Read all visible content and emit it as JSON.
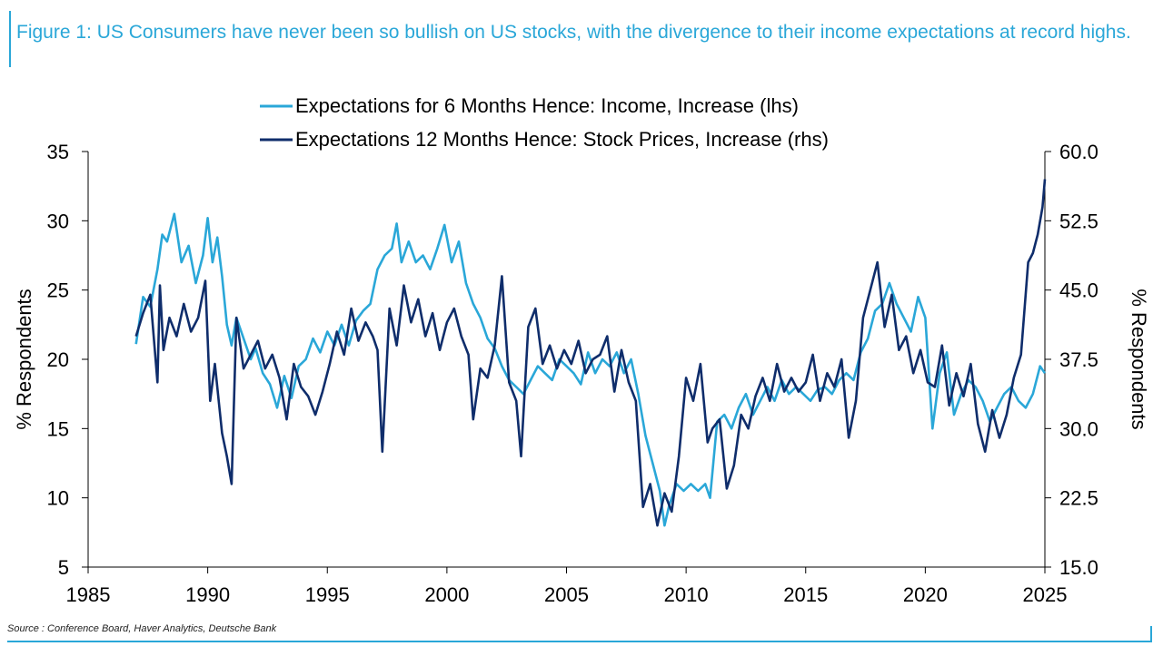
{
  "title": "Figure 1: US Consumers have never been so bullish on US stocks, with the divergence to their income expectations at record highs.",
  "source": "Source : Conference Board, Haver Analytics, Deutsche Bank",
  "colors": {
    "income": "#2aa7d8",
    "stocks": "#0f2d6b",
    "accent": "#2aa7d8",
    "axis": "#000000"
  },
  "chart_data": {
    "type": "line",
    "title": "",
    "xlabel": "",
    "ylabel_left": "% Respondents",
    "ylabel_right": "% Respondents",
    "xlim": [
      1985,
      2025
    ],
    "ylim_left": [
      5,
      35
    ],
    "ylim_right": [
      15.0,
      60.0
    ],
    "x_ticks": [
      "1985",
      "1990",
      "1995",
      "2000",
      "2005",
      "2010",
      "2015",
      "2020",
      "2025"
    ],
    "y_left_ticks": [
      "5",
      "10",
      "15",
      "20",
      "25",
      "30",
      "35"
    ],
    "y_right_ticks": [
      "15.0",
      "22.5",
      "30.0",
      "37.5",
      "45.0",
      "52.5",
      "60.0"
    ],
    "legend_position": "top-center",
    "series": [
      {
        "name": "Expectations for 6 Months Hence: Income, Increase (lhs)",
        "axis": "left",
        "x": [
          1987.0,
          1987.3,
          1987.6,
          1987.9,
          1988.1,
          1988.3,
          1988.6,
          1988.9,
          1989.2,
          1989.5,
          1989.8,
          1990.0,
          1990.2,
          1990.4,
          1990.6,
          1990.8,
          1991.0,
          1991.2,
          1991.5,
          1991.8,
          1992.0,
          1992.3,
          1992.6,
          1992.9,
          1993.2,
          1993.5,
          1993.8,
          1994.1,
          1994.4,
          1994.7,
          1995.0,
          1995.3,
          1995.6,
          1995.9,
          1996.2,
          1996.5,
          1996.8,
          1997.1,
          1997.4,
          1997.7,
          1997.9,
          1998.1,
          1998.4,
          1998.7,
          1999.0,
          1999.3,
          1999.6,
          1999.9,
          2000.2,
          2000.5,
          2000.8,
          2001.1,
          2001.4,
          2001.7,
          2002.0,
          2002.3,
          2002.6,
          2002.9,
          2003.2,
          2003.5,
          2003.8,
          2004.1,
          2004.4,
          2004.7,
          2005.0,
          2005.3,
          2005.6,
          2005.9,
          2006.2,
          2006.5,
          2006.8,
          2007.1,
          2007.4,
          2007.7,
          2008.0,
          2008.3,
          2008.6,
          2008.9,
          2009.1,
          2009.3,
          2009.6,
          2009.9,
          2010.2,
          2010.5,
          2010.8,
          2011.0,
          2011.3,
          2011.6,
          2011.9,
          2012.2,
          2012.5,
          2012.8,
          2013.1,
          2013.4,
          2013.7,
          2014.0,
          2014.3,
          2014.6,
          2014.9,
          2015.2,
          2015.5,
          2015.8,
          2016.1,
          2016.4,
          2016.7,
          2017.0,
          2017.3,
          2017.6,
          2017.9,
          2018.2,
          2018.5,
          2018.8,
          2019.1,
          2019.4,
          2019.7,
          2020.0,
          2020.3,
          2020.6,
          2020.9,
          2021.2,
          2021.5,
          2021.8,
          2022.1,
          2022.4,
          2022.7,
          2023.0,
          2023.3,
          2023.6,
          2023.9,
          2024.2,
          2024.5,
          2024.8,
          2025.0
        ],
        "values": [
          21.1,
          24.5,
          23.8,
          26.5,
          29.0,
          28.5,
          30.5,
          27.0,
          28.2,
          25.5,
          27.5,
          30.2,
          27.0,
          28.8,
          26.0,
          22.5,
          21.0,
          23.0,
          21.5,
          20.0,
          20.8,
          19.0,
          18.2,
          16.5,
          18.8,
          17.2,
          19.5,
          20.0,
          21.5,
          20.5,
          22.0,
          21.0,
          22.5,
          21.0,
          22.8,
          23.5,
          24.0,
          26.5,
          27.5,
          28.0,
          29.8,
          27.0,
          28.5,
          27.0,
          27.5,
          26.5,
          28.0,
          29.7,
          27.0,
          28.5,
          25.5,
          24.0,
          23.0,
          21.5,
          20.8,
          19.5,
          18.5,
          18.0,
          17.5,
          18.5,
          19.5,
          19.0,
          18.5,
          20.0,
          19.5,
          19.0,
          18.2,
          20.5,
          19.0,
          20.0,
          19.5,
          20.5,
          19.0,
          20.0,
          17.5,
          14.5,
          12.5,
          10.5,
          8.0,
          9.5,
          11.0,
          10.5,
          11.0,
          10.5,
          11.0,
          10.0,
          15.5,
          16.0,
          15.0,
          16.5,
          17.5,
          16.0,
          17.0,
          18.0,
          17.0,
          18.5,
          17.5,
          18.0,
          17.5,
          17.0,
          17.8,
          18.0,
          17.5,
          18.5,
          19.0,
          18.5,
          20.5,
          21.5,
          23.5,
          24.0,
          25.5,
          24.0,
          23.0,
          22.0,
          24.5,
          23.0,
          15.0,
          19.0,
          20.5,
          16.0,
          17.5,
          18.5,
          18.0,
          17.0,
          15.5,
          16.5,
          17.5,
          18.0,
          17.0,
          16.5,
          17.5,
          19.5,
          19.0
        ]
      },
      {
        "name": "Expectations 12 Months Hence: Stock Prices, Increase (rhs)",
        "axis": "right",
        "x": [
          1987.0,
          1987.3,
          1987.6,
          1987.9,
          1988.0,
          1988.15,
          1988.4,
          1988.7,
          1989.0,
          1989.3,
          1989.6,
          1989.9,
          1990.1,
          1990.3,
          1990.6,
          1990.8,
          1991.0,
          1991.2,
          1991.5,
          1991.8,
          1992.1,
          1992.4,
          1992.7,
          1993.0,
          1993.3,
          1993.6,
          1993.9,
          1994.2,
          1994.5,
          1994.8,
          1995.1,
          1995.4,
          1995.7,
          1996.0,
          1996.3,
          1996.6,
          1996.9,
          1997.1,
          1997.3,
          1997.6,
          1997.9,
          1998.2,
          1998.5,
          1998.8,
          1999.1,
          1999.4,
          1999.7,
          2000.0,
          2000.3,
          2000.6,
          2000.9,
          2001.1,
          2001.4,
          2001.7,
          2002.0,
          2002.3,
          2002.6,
          2002.9,
          2003.1,
          2003.4,
          2003.7,
          2004.0,
          2004.3,
          2004.6,
          2004.9,
          2005.2,
          2005.5,
          2005.8,
          2006.1,
          2006.4,
          2006.7,
          2007.0,
          2007.3,
          2007.6,
          2007.9,
          2008.2,
          2008.5,
          2008.8,
          2009.1,
          2009.4,
          2009.7,
          2010.0,
          2010.3,
          2010.6,
          2010.9,
          2011.1,
          2011.4,
          2011.7,
          2012.0,
          2012.3,
          2012.6,
          2012.9,
          2013.2,
          2013.5,
          2013.8,
          2014.1,
          2014.4,
          2014.7,
          2015.0,
          2015.3,
          2015.6,
          2015.9,
          2016.2,
          2016.5,
          2016.8,
          2017.1,
          2017.4,
          2017.7,
          2018.0,
          2018.3,
          2018.6,
          2018.9,
          2019.2,
          2019.5,
          2019.8,
          2020.1,
          2020.4,
          2020.7,
          2021.0,
          2021.3,
          2021.6,
          2021.9,
          2022.2,
          2022.5,
          2022.8,
          2023.1,
          2023.4,
          2023.7,
          2024.0,
          2024.3,
          2024.5,
          2024.7,
          2024.9,
          2025.0
        ],
        "values": [
          40.0,
          42.5,
          44.5,
          35.0,
          45.5,
          38.5,
          42.0,
          40.0,
          43.5,
          40.5,
          42.0,
          46.0,
          33.0,
          37.0,
          29.5,
          27.0,
          24.0,
          42.0,
          36.5,
          38.0,
          39.5,
          36.5,
          38.0,
          35.5,
          31.0,
          37.0,
          34.5,
          33.5,
          31.5,
          34.0,
          37.0,
          40.5,
          38.0,
          43.0,
          39.5,
          41.5,
          40.0,
          38.5,
          27.5,
          43.0,
          39.0,
          45.5,
          41.5,
          44.0,
          40.0,
          42.5,
          38.5,
          41.5,
          43.0,
          40.0,
          38.0,
          31.0,
          36.5,
          35.5,
          39.0,
          46.5,
          35.0,
          33.0,
          27.0,
          41.0,
          43.0,
          37.0,
          39.0,
          36.5,
          38.5,
          37.0,
          39.5,
          36.0,
          37.5,
          38.0,
          40.0,
          34.0,
          38.5,
          35.0,
          33.0,
          21.5,
          24.0,
          19.5,
          23.0,
          21.0,
          27.0,
          35.5,
          33.0,
          37.0,
          28.5,
          30.0,
          31.0,
          23.5,
          26.0,
          31.5,
          30.0,
          33.5,
          35.5,
          33.0,
          37.0,
          34.0,
          35.5,
          34.0,
          35.0,
          38.0,
          33.0,
          36.0,
          34.5,
          37.5,
          29.0,
          33.0,
          42.0,
          45.0,
          48.0,
          41.0,
          44.5,
          38.5,
          40.0,
          36.0,
          38.5,
          35.0,
          34.5,
          39.0,
          32.5,
          36.0,
          33.5,
          37.0,
          30.5,
          27.5,
          32.0,
          29.0,
          31.5,
          35.5,
          38.0,
          48.0,
          49.0,
          51.0,
          54.0,
          57.0
        ]
      }
    ]
  }
}
